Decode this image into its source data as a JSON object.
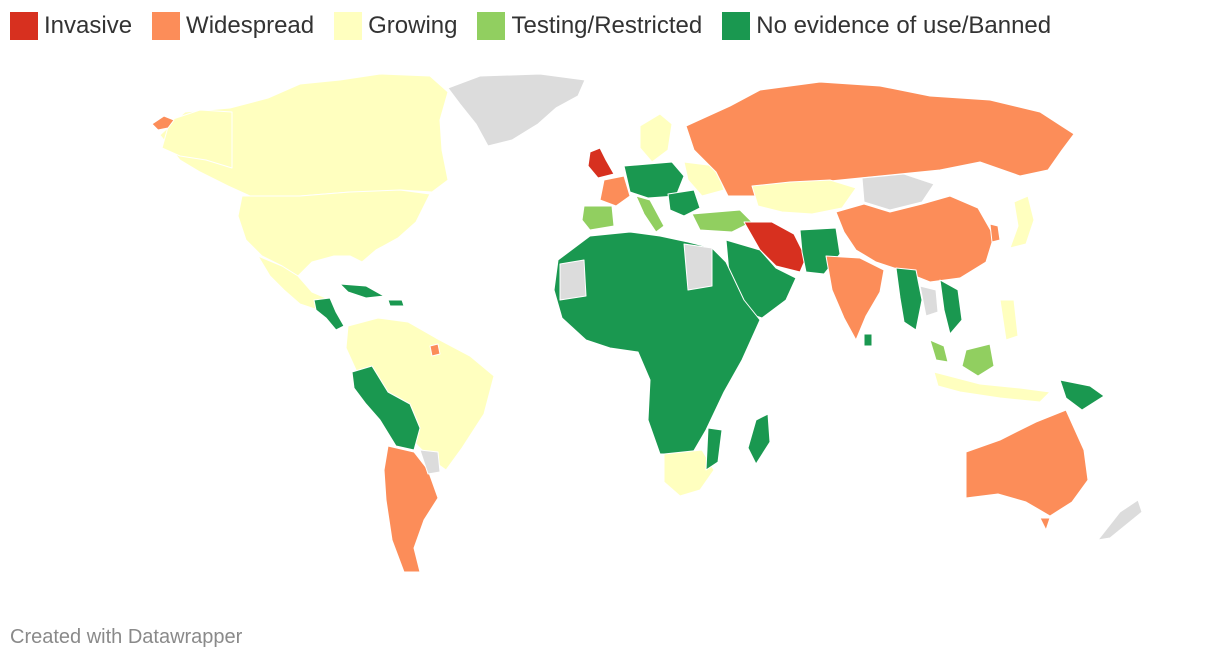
{
  "legend": [
    {
      "label": "Invasive",
      "color": "#d7301f"
    },
    {
      "label": "Widespread",
      "color": "#fc8d59"
    },
    {
      "label": "Growing",
      "color": "#ffffbf"
    },
    {
      "label": "Testing/Restricted",
      "color": "#91cf60"
    },
    {
      "label": "No evidence of use/Banned",
      "color": "#1a9850"
    }
  ],
  "nodata_color": "#dcdcdc",
  "credit": "Created with Datawrapper"
}
